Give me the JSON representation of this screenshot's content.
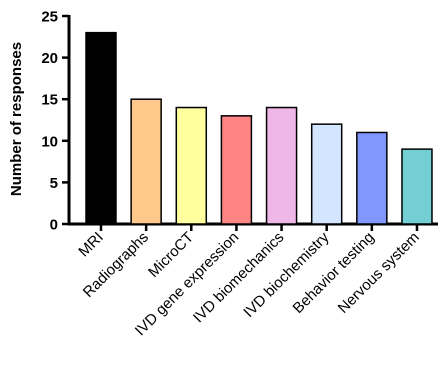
{
  "chart_data": {
    "type": "bar",
    "title": "",
    "xlabel": "",
    "ylabel": "Number of responses",
    "ylim": [
      0,
      25
    ],
    "yticks": [
      0,
      5,
      10,
      15,
      20,
      25
    ],
    "grid": false,
    "categories": [
      "MRI",
      "Radiographs",
      "MicroCT",
      "IVD gene expression",
      "IVD biomechanics",
      "IVD biochemistry",
      "Behavior testing",
      "Nervous system"
    ],
    "values": [
      23,
      15,
      14,
      13,
      14,
      12,
      11,
      9
    ],
    "colors": [
      "#000000",
      "#ffc98b",
      "#ffff9f",
      "#ff8585",
      "#efb6e8",
      "#d4e6ff",
      "#8097ff",
      "#73cfd3"
    ]
  }
}
